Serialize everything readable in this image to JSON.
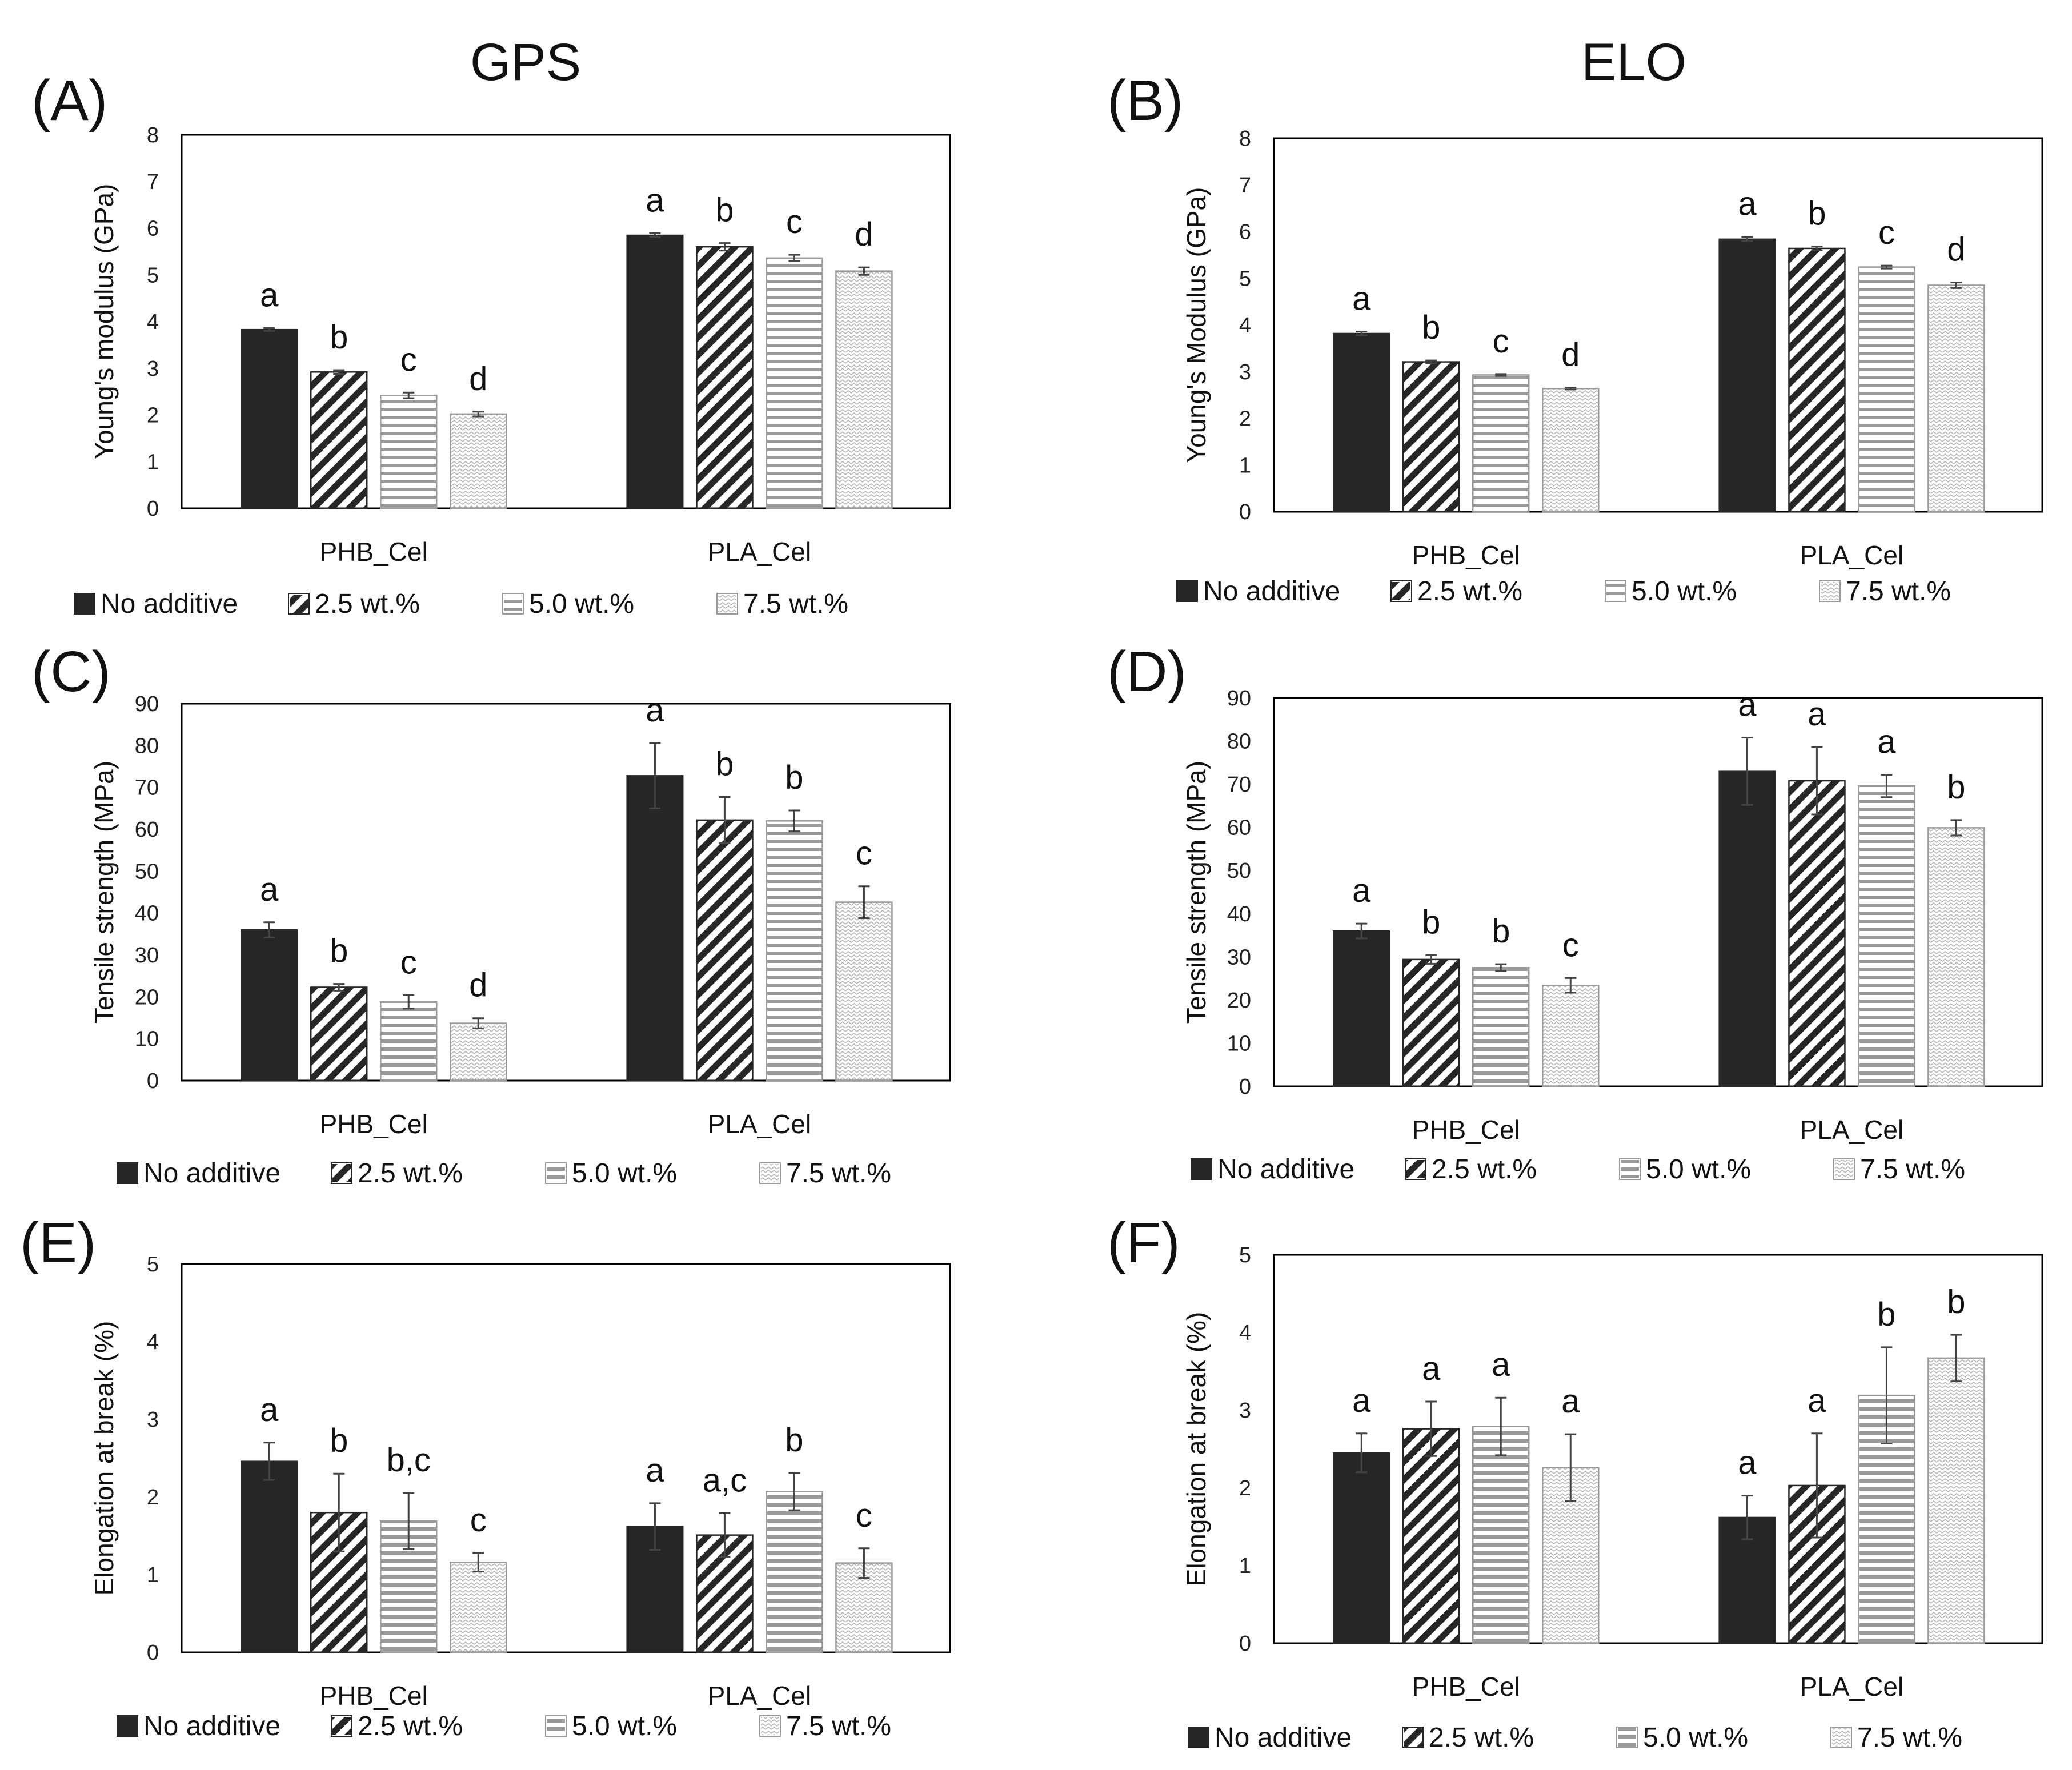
{
  "column_titles": [
    "GPS",
    "ELO"
  ],
  "legend_labels": [
    "No additive",
    "2.5 wt.%",
    "5.0 wt.%",
    "7.5 wt.%"
  ],
  "colors": {
    "no_additive": "#262626",
    "stripe": "#262626",
    "hline": "#9a9a9a",
    "wave": "#b5b5b5",
    "frame": "#000000",
    "errorbar": "#444444"
  },
  "chart_data": [
    {
      "panel": "(A)",
      "type": "bar",
      "ylabel": "Young's modulus (GPa)",
      "categories": [
        "PHB_Cel",
        "PLA_Cel"
      ],
      "ylim": [
        0,
        8
      ],
      "yticks": [
        0,
        1,
        2,
        3,
        4,
        5,
        6,
        7,
        8
      ],
      "series": [
        {
          "name": "No additive",
          "values": [
            3.83,
            5.85
          ],
          "errors": [
            0.03,
            0.04
          ],
          "letters": [
            "a",
            "a"
          ]
        },
        {
          "name": "2.5 wt.%",
          "values": [
            2.92,
            5.6
          ],
          "errors": [
            0.04,
            0.08
          ],
          "letters": [
            "b",
            "b"
          ]
        },
        {
          "name": "5.0 wt.%",
          "values": [
            2.42,
            5.36
          ],
          "errors": [
            0.06,
            0.07
          ],
          "letters": [
            "c",
            "c"
          ]
        },
        {
          "name": "7.5 wt.%",
          "values": [
            2.02,
            5.08
          ],
          "errors": [
            0.05,
            0.08
          ],
          "letters": [
            "d",
            "d"
          ]
        }
      ]
    },
    {
      "panel": "(B)",
      "type": "bar",
      "ylabel": "Young's Modulus (GPa)",
      "categories": [
        "PHB_Cel",
        "PLA_Cel"
      ],
      "ylim": [
        0,
        8
      ],
      "yticks": [
        0,
        1,
        2,
        3,
        4,
        5,
        6,
        7,
        8
      ],
      "series": [
        {
          "name": "No additive",
          "values": [
            3.82,
            5.84
          ],
          "errors": [
            0.04,
            0.05
          ],
          "letters": [
            "a",
            "a"
          ]
        },
        {
          "name": "2.5 wt.%",
          "values": [
            3.21,
            5.64
          ],
          "errors": [
            0.03,
            0.04
          ],
          "letters": [
            "b",
            "b"
          ]
        },
        {
          "name": "5.0 wt.%",
          "values": [
            2.93,
            5.24
          ],
          "errors": [
            0.02,
            0.03
          ],
          "letters": [
            "c",
            "c"
          ]
        },
        {
          "name": "7.5 wt.%",
          "values": [
            2.64,
            4.85
          ],
          "errors": [
            0.02,
            0.06
          ],
          "letters": [
            "d",
            "d"
          ]
        }
      ]
    },
    {
      "panel": "(C)",
      "type": "bar",
      "ylabel": "Tensile strength (MPa)",
      "categories": [
        "PHB_Cel",
        "PLA_Cel"
      ],
      "ylim": [
        0,
        90
      ],
      "yticks": [
        0,
        10,
        20,
        30,
        40,
        50,
        60,
        70,
        80,
        90
      ],
      "series": [
        {
          "name": "No additive",
          "values": [
            36,
            72.8
          ],
          "errors": [
            1.8,
            7.8
          ],
          "letters": [
            "a",
            "a"
          ]
        },
        {
          "name": "2.5 wt.%",
          "values": [
            22.3,
            62.2
          ],
          "errors": [
            0.8,
            5.5
          ],
          "letters": [
            "b",
            "b"
          ]
        },
        {
          "name": "5.0 wt.%",
          "values": [
            18.8,
            62
          ],
          "errors": [
            1.6,
            2.5
          ],
          "letters": [
            "c",
            "b"
          ]
        },
        {
          "name": "7.5 wt.%",
          "values": [
            13.7,
            42.6
          ],
          "errors": [
            1.2,
            3.8
          ],
          "letters": [
            "d",
            "c"
          ]
        }
      ]
    },
    {
      "panel": "(D)",
      "type": "bar",
      "ylabel": "Tensile strength (MPa)",
      "categories": [
        "PHB_Cel",
        "PLA_Cel"
      ],
      "ylim": [
        0,
        90
      ],
      "yticks": [
        0,
        10,
        20,
        30,
        40,
        50,
        60,
        70,
        80,
        90
      ],
      "series": [
        {
          "name": "No additive",
          "values": [
            36,
            73
          ],
          "errors": [
            1.7,
            7.8
          ],
          "letters": [
            "a",
            "a"
          ]
        },
        {
          "name": "2.5 wt.%",
          "values": [
            29.4,
            70.8
          ],
          "errors": [
            1,
            7.8
          ],
          "letters": [
            "b",
            "a"
          ]
        },
        {
          "name": "5.0 wt.%",
          "values": [
            27.5,
            69.6
          ],
          "errors": [
            0.8,
            2.6
          ],
          "letters": [
            "b",
            "a"
          ]
        },
        {
          "name": "7.5 wt.%",
          "values": [
            23.4,
            59.9
          ],
          "errors": [
            1.7,
            1.8
          ],
          "letters": [
            "c",
            "b"
          ]
        }
      ]
    },
    {
      "panel": "(E)",
      "type": "bar",
      "ylabel": "Elongation at break (%)",
      "categories": [
        "PHB_Cel",
        "PLA_Cel"
      ],
      "ylim": [
        0,
        5
      ],
      "yticks": [
        0,
        1,
        2,
        3,
        4,
        5
      ],
      "series": [
        {
          "name": "No additive",
          "values": [
            2.46,
            1.62
          ],
          "errors": [
            0.24,
            0.3
          ],
          "letters": [
            "a",
            "a"
          ]
        },
        {
          "name": "2.5 wt.%",
          "values": [
            1.8,
            1.51
          ],
          "errors": [
            0.5,
            0.28
          ],
          "letters": [
            "b",
            "a,c"
          ]
        },
        {
          "name": "5.0 wt.%",
          "values": [
            1.69,
            2.07
          ],
          "errors": [
            0.36,
            0.24
          ],
          "letters": [
            "b,c",
            "b"
          ]
        },
        {
          "name": "7.5 wt.%",
          "values": [
            1.16,
            1.15
          ],
          "errors": [
            0.12,
            0.19
          ],
          "letters": [
            "c",
            "c"
          ]
        }
      ]
    },
    {
      "panel": "(F)",
      "type": "bar",
      "ylabel": "Elongation at break (%)",
      "categories": [
        "PHB_Cel",
        "PLA_Cel"
      ],
      "ylim": [
        0,
        5
      ],
      "yticks": [
        0,
        1,
        2,
        3,
        4,
        5
      ],
      "series": [
        {
          "name": "No additive",
          "values": [
            2.45,
            1.62
          ],
          "errors": [
            0.25,
            0.28
          ],
          "letters": [
            "a",
            "a"
          ]
        },
        {
          "name": "2.5 wt.%",
          "values": [
            2.76,
            2.03
          ],
          "errors": [
            0.35,
            0.67
          ],
          "letters": [
            "a",
            "a"
          ]
        },
        {
          "name": "5.0 wt.%",
          "values": [
            2.79,
            3.19
          ],
          "errors": [
            0.37,
            0.62
          ],
          "letters": [
            "a",
            "b"
          ]
        },
        {
          "name": "7.5 wt.%",
          "values": [
            2.26,
            3.67
          ],
          "errors": [
            0.43,
            0.3
          ],
          "letters": [
            "a",
            "b"
          ]
        }
      ]
    }
  ]
}
